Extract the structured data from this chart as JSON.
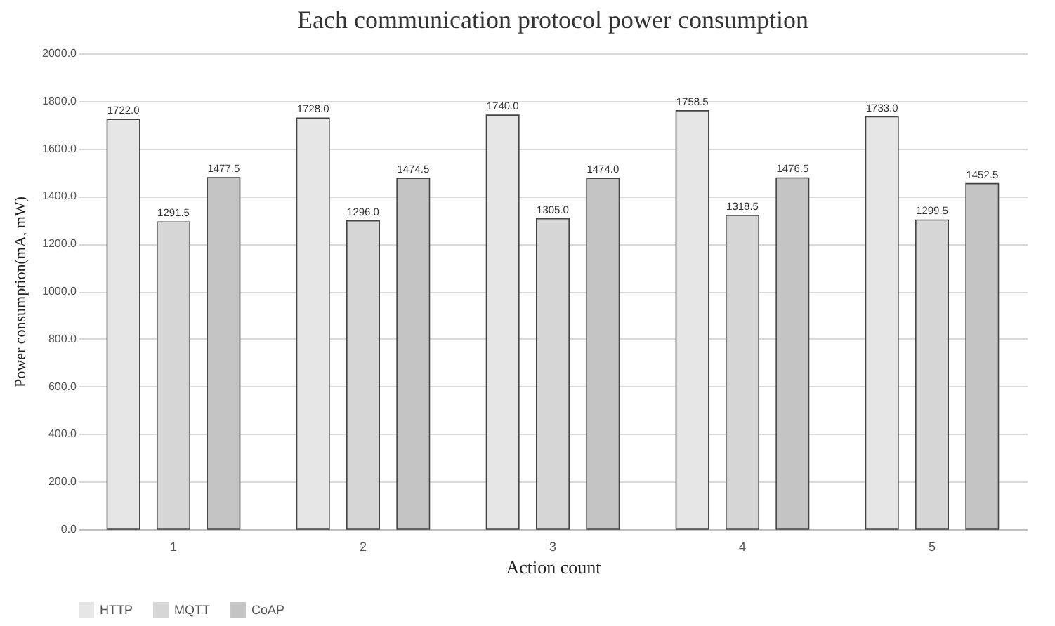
{
  "chart_data": {
    "type": "bar",
    "title": "Each communication protocol power consumption",
    "xlabel": "Action count",
    "ylabel": "Power consumption(mA, mW)",
    "categories": [
      "1",
      "2",
      "3",
      "4",
      "5"
    ],
    "series": [
      {
        "name": "HTTP",
        "color": "#e6e6e6",
        "values": [
          1722.0,
          1728.0,
          1740.0,
          1758.5,
          1733.0
        ],
        "value_labels": [
          "1722.0",
          "1728.0",
          "1740.0",
          "1758.5",
          "1733.0"
        ]
      },
      {
        "name": "MQTT",
        "color": "#d6d6d6",
        "values": [
          1291.5,
          1296.0,
          1305.0,
          1318.5,
          1299.5
        ],
        "value_labels": [
          "1291.5",
          "1296.0",
          "1305.0",
          "1318.5",
          "1299.5"
        ]
      },
      {
        "name": "CoAP",
        "color": "#c4c4c4",
        "values": [
          1477.5,
          1474.5,
          1474.0,
          1476.5,
          1452.5
        ],
        "value_labels": [
          "1477.5",
          "1474.5",
          "1474.0",
          "1476.5",
          "1452.5"
        ]
      }
    ],
    "ylim": [
      0,
      2000
    ],
    "yticks": [
      {
        "value": 0,
        "label": "0.0"
      },
      {
        "value": 200,
        "label": "200.0"
      },
      {
        "value": 400,
        "label": "400.0"
      },
      {
        "value": 600,
        "label": "600.0"
      },
      {
        "value": 800,
        "label": "800.0"
      },
      {
        "value": 1000,
        "label": "1000.0"
      },
      {
        "value": 1200,
        "label": "1200.0"
      },
      {
        "value": 1400,
        "label": "1400.0"
      },
      {
        "value": 1600,
        "label": "1600.0"
      },
      {
        "value": 1800,
        "label": "1800.0"
      },
      {
        "value": 2000,
        "label": "2000.0"
      }
    ],
    "grid": "y",
    "legend": "bottom"
  }
}
